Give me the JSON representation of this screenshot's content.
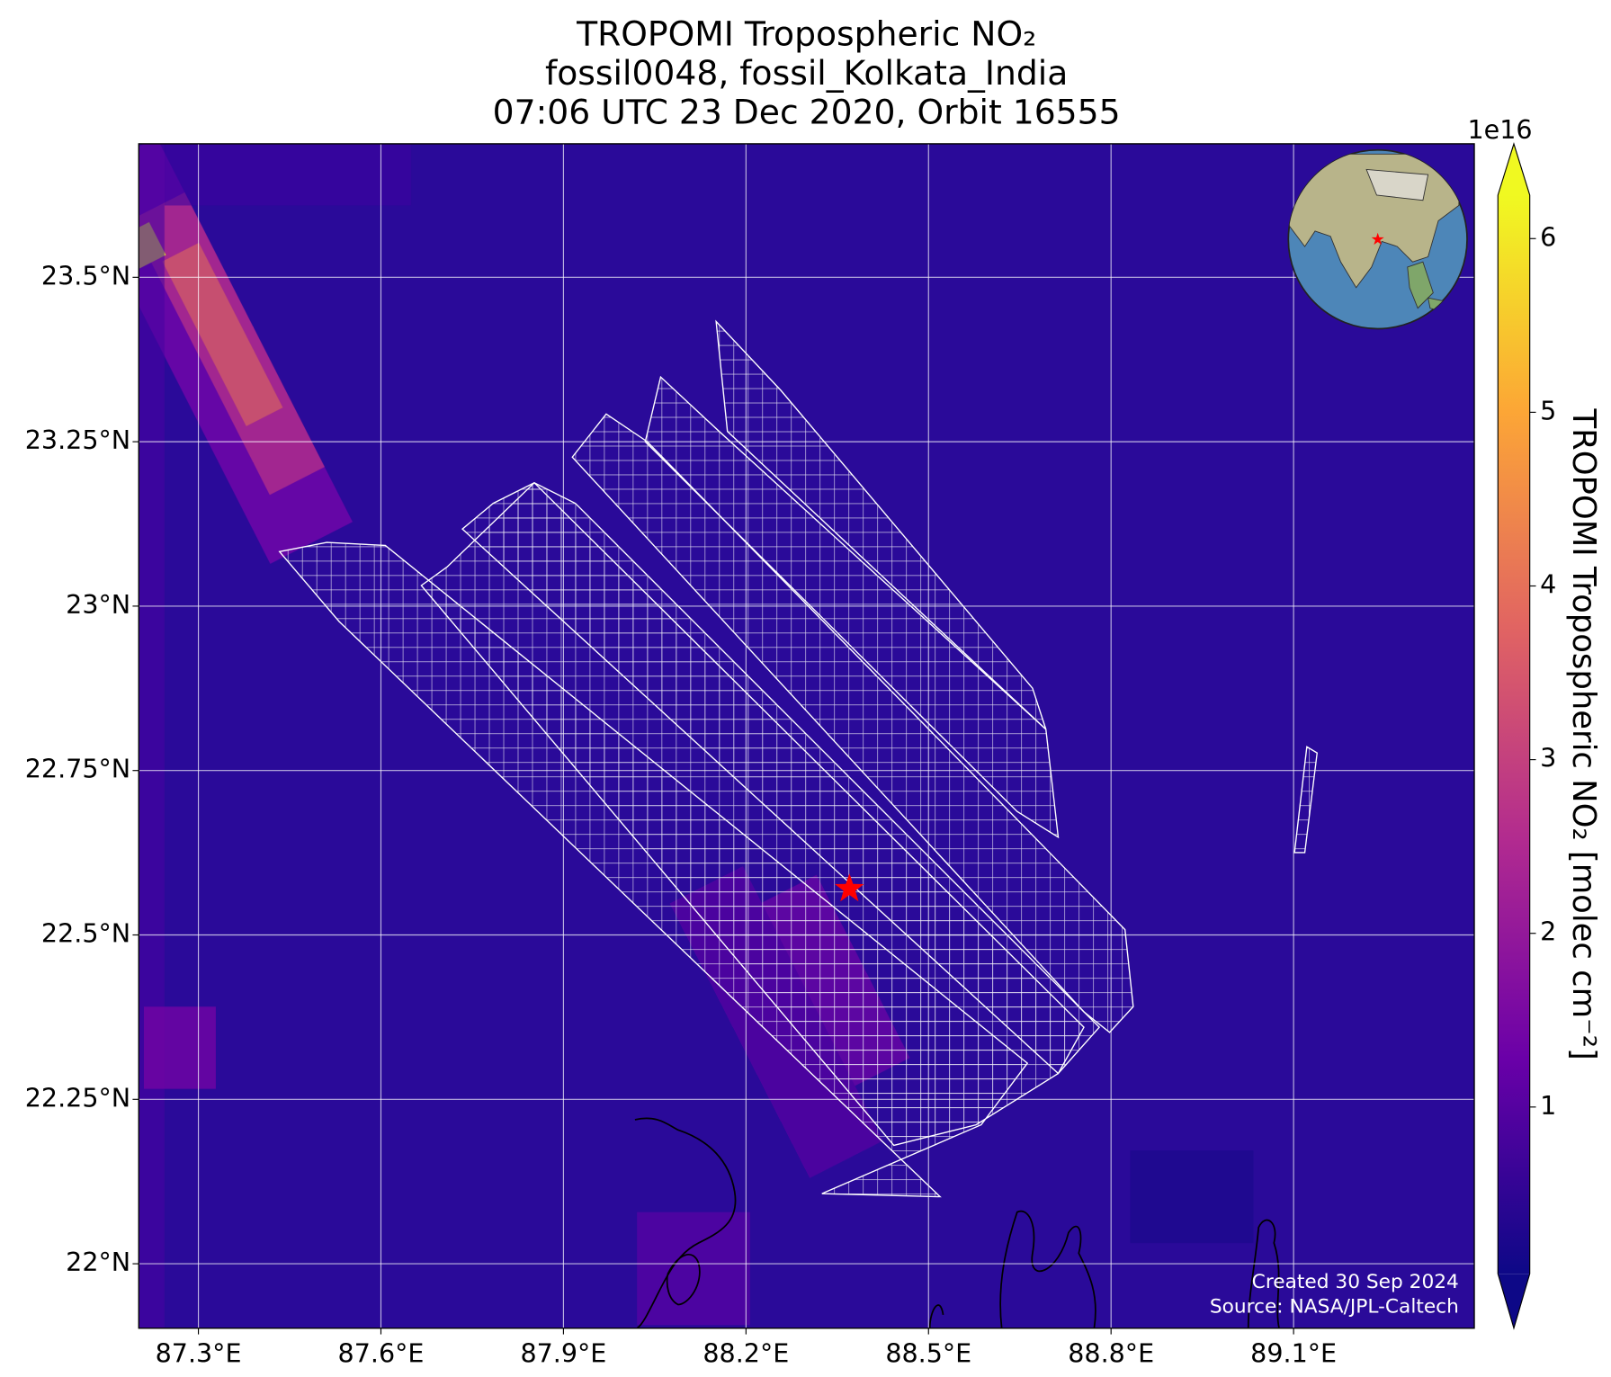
{
  "chart_data": {
    "type": "map",
    "title_lines": [
      "TROPOMI Tropospheric NO₂",
      "fossil0048, fossil_Kolkata_India",
      "07:06 UTC 23 Dec 2020, Orbit 16555"
    ],
    "xlim": [
      87.202,
      89.397
    ],
    "ylim": [
      21.902,
      23.703
    ],
    "xticks": [
      {
        "value": 87.3,
        "label": "87.3°E"
      },
      {
        "value": 87.6,
        "label": "87.6°E"
      },
      {
        "value": 87.9,
        "label": "87.9°E"
      },
      {
        "value": 88.2,
        "label": "88.2°E"
      },
      {
        "value": 88.5,
        "label": "88.5°E"
      },
      {
        "value": 88.8,
        "label": "88.8°E"
      },
      {
        "value": 89.1,
        "label": "89.1°E"
      }
    ],
    "yticks": [
      {
        "value": 22,
        "label": "22°N"
      },
      {
        "value": 22.25,
        "label": "22.25°N"
      },
      {
        "value": 22.5,
        "label": "22.5°N"
      },
      {
        "value": 22.75,
        "label": "22.75°N"
      },
      {
        "value": 23,
        "label": "23°N"
      },
      {
        "value": 23.25,
        "label": "23.25°N"
      },
      {
        "value": 23.5,
        "label": "23.5°N"
      }
    ],
    "grid": true,
    "marker": {
      "lon": 88.37,
      "lat": 22.57,
      "color": "#ff0000"
    },
    "colorbar": {
      "label": "TROPOMI Tropospheric NO₂ [molec cm⁻²]",
      "exponent": "1e16",
      "lim": [
        0.04,
        6.25
      ],
      "ticks": [
        1,
        2,
        3,
        4,
        5,
        6
      ],
      "colors": [
        "#0d0887",
        "#6a00a8",
        "#b12a90",
        "#e16462",
        "#fca636",
        "#f0f921"
      ]
    },
    "footer": [
      "Created 30 Sep 2024",
      "Source: NASA/JPL-Caltech"
    ]
  }
}
